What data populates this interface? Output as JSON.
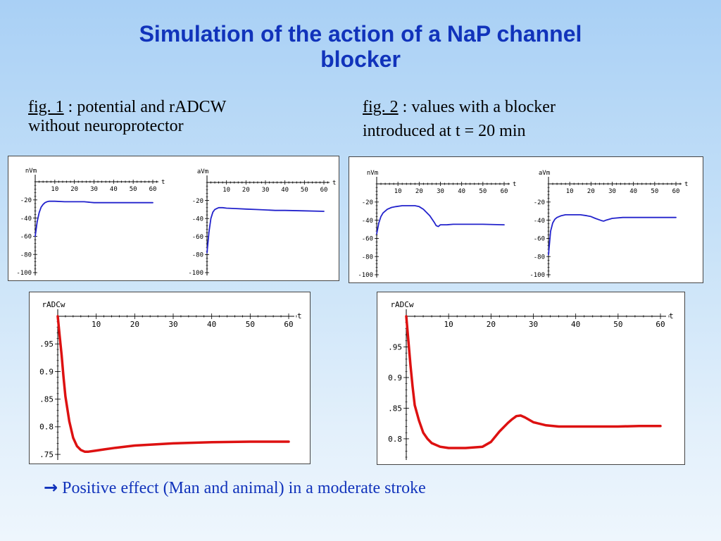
{
  "title": {
    "line1": "Simulation of the action of a NaP channel",
    "line2": "blocker"
  },
  "fig1": {
    "ref": "fig. 1",
    "text_line1": " : potential and rADCW",
    "text_line2": "without neuroprotector"
  },
  "fig2": {
    "ref": "fig. 2",
    "text_line1": " : values with a blocker",
    "text_line2": "introduced at t = 20 min"
  },
  "conclusion": {
    "arrow": "→",
    "text": "Positive effect (Man and animal) in a moderate stroke"
  },
  "colors": {
    "potential_line": "#2222cc",
    "radc_line": "#dd1111",
    "title": "#1133bb"
  },
  "chart_data": [
    {
      "id": "fig1-nvm",
      "type": "line",
      "ylabel": "nVm",
      "xlabel": "t",
      "xlim": [
        0,
        60
      ],
      "ylim": [
        -100,
        0
      ],
      "xticks": [
        10,
        20,
        30,
        40,
        50,
        60
      ],
      "yticks": [
        -20,
        -40,
        -60,
        -80,
        -100
      ],
      "series": [
        {
          "x": [
            0,
            1,
            2,
            3,
            4,
            5,
            6,
            7,
            8,
            10,
            15,
            20,
            25,
            30,
            40,
            50,
            60
          ],
          "y": [
            -60,
            -44,
            -34,
            -28,
            -25,
            -23,
            -22,
            -21.5,
            -21.5,
            -21.5,
            -22,
            -22,
            -22,
            -23,
            -23,
            -23,
            -23
          ]
        }
      ]
    },
    {
      "id": "fig1-avm",
      "type": "line",
      "ylabel": "aVm",
      "xlabel": "t",
      "xlim": [
        0,
        60
      ],
      "ylim": [
        -100,
        0
      ],
      "xticks": [
        10,
        20,
        30,
        40,
        50,
        60
      ],
      "yticks": [
        -20,
        -40,
        -60,
        -80,
        -100
      ],
      "series": [
        {
          "x": [
            0,
            1,
            2,
            3,
            4,
            5,
            6,
            8,
            10,
            15,
            20,
            25,
            30,
            35,
            40,
            50,
            60
          ],
          "y": [
            -78,
            -55,
            -40,
            -33,
            -30,
            -29,
            -28,
            -28,
            -28.5,
            -29,
            -29.5,
            -30,
            -30.5,
            -31,
            -31,
            -31.5,
            -32
          ]
        }
      ]
    },
    {
      "id": "fig2-nvm",
      "type": "line",
      "ylabel": "nVm",
      "xlabel": "t",
      "xlim": [
        0,
        60
      ],
      "ylim": [
        -100,
        0
      ],
      "xticks": [
        10,
        20,
        30,
        40,
        50,
        60
      ],
      "yticks": [
        -20,
        -40,
        -60,
        -80,
        -100
      ],
      "series": [
        {
          "x": [
            0,
            1,
            2,
            3,
            5,
            7,
            9,
            12,
            15,
            18,
            20,
            22,
            25,
            27,
            28,
            29,
            30,
            33,
            36,
            40,
            50,
            60
          ],
          "y": [
            -55,
            -43,
            -36,
            -32,
            -28,
            -26,
            -25,
            -24,
            -24,
            -24,
            -25,
            -28,
            -35,
            -42,
            -46,
            -47,
            -45,
            -45,
            -44.5,
            -44.5,
            -44.5,
            -45
          ]
        }
      ]
    },
    {
      "id": "fig2-avm",
      "type": "line",
      "ylabel": "aVm",
      "xlabel": "t",
      "xlim": [
        0,
        60
      ],
      "ylim": [
        -100,
        0
      ],
      "xticks": [
        10,
        20,
        30,
        40,
        50,
        60
      ],
      "yticks": [
        -20,
        -40,
        -60,
        -80,
        -100
      ],
      "series": [
        {
          "x": [
            0,
            1,
            2,
            3,
            4,
            6,
            8,
            10,
            15,
            18,
            20,
            22,
            25,
            26,
            27,
            30,
            35,
            40,
            50,
            60
          ],
          "y": [
            -78,
            -52,
            -43,
            -39,
            -37,
            -35,
            -34,
            -34,
            -34,
            -35,
            -36,
            -38,
            -40.5,
            -41,
            -40,
            -38,
            -37,
            -37,
            -37,
            -37
          ]
        }
      ]
    },
    {
      "id": "fig1-radcw",
      "type": "line",
      "ylabel": "rADCw",
      "xlabel": "t",
      "xlim": [
        0,
        60
      ],
      "ylim": [
        0.745,
        1.0
      ],
      "xticks": [
        10,
        20,
        30,
        40,
        50,
        60
      ],
      "yticks": [
        0.95,
        0.9,
        0.85,
        0.8,
        0.75
      ],
      "ytick_labels": [
        ".95",
        "0.9",
        ".85",
        "0.8",
        ".75"
      ],
      "series": [
        {
          "x": [
            0,
            0.5,
            1,
            1.5,
            2,
            3,
            4,
            5,
            6,
            7,
            8,
            10,
            12,
            15,
            20,
            30,
            40,
            50,
            60
          ],
          "y": [
            1.0,
            0.965,
            0.93,
            0.89,
            0.855,
            0.81,
            0.78,
            0.765,
            0.758,
            0.755,
            0.755,
            0.757,
            0.759,
            0.762,
            0.766,
            0.77,
            0.772,
            0.773,
            0.773
          ]
        }
      ]
    },
    {
      "id": "fig2-radcw",
      "type": "line",
      "ylabel": "rADCw",
      "xlabel": "t",
      "xlim": [
        0,
        60
      ],
      "ylim": [
        0.77,
        1.0
      ],
      "xticks": [
        10,
        20,
        30,
        40,
        50,
        60
      ],
      "yticks": [
        0.95,
        0.9,
        0.85,
        0.8
      ],
      "ytick_labels": [
        ".95",
        "0.9",
        ".85",
        "0.8"
      ],
      "series": [
        {
          "x": [
            0,
            0.5,
            1,
            1.5,
            2,
            3,
            4,
            5,
            6,
            8,
            10,
            14,
            18,
            20,
            22,
            24,
            25,
            26,
            27,
            28,
            30,
            33,
            36,
            40,
            45,
            50,
            55,
            60
          ],
          "y": [
            1.0,
            0.96,
            0.92,
            0.885,
            0.855,
            0.83,
            0.81,
            0.8,
            0.793,
            0.787,
            0.785,
            0.785,
            0.787,
            0.795,
            0.812,
            0.826,
            0.832,
            0.837,
            0.838,
            0.835,
            0.827,
            0.822,
            0.82,
            0.82,
            0.82,
            0.82,
            0.821,
            0.821
          ]
        }
      ]
    }
  ]
}
